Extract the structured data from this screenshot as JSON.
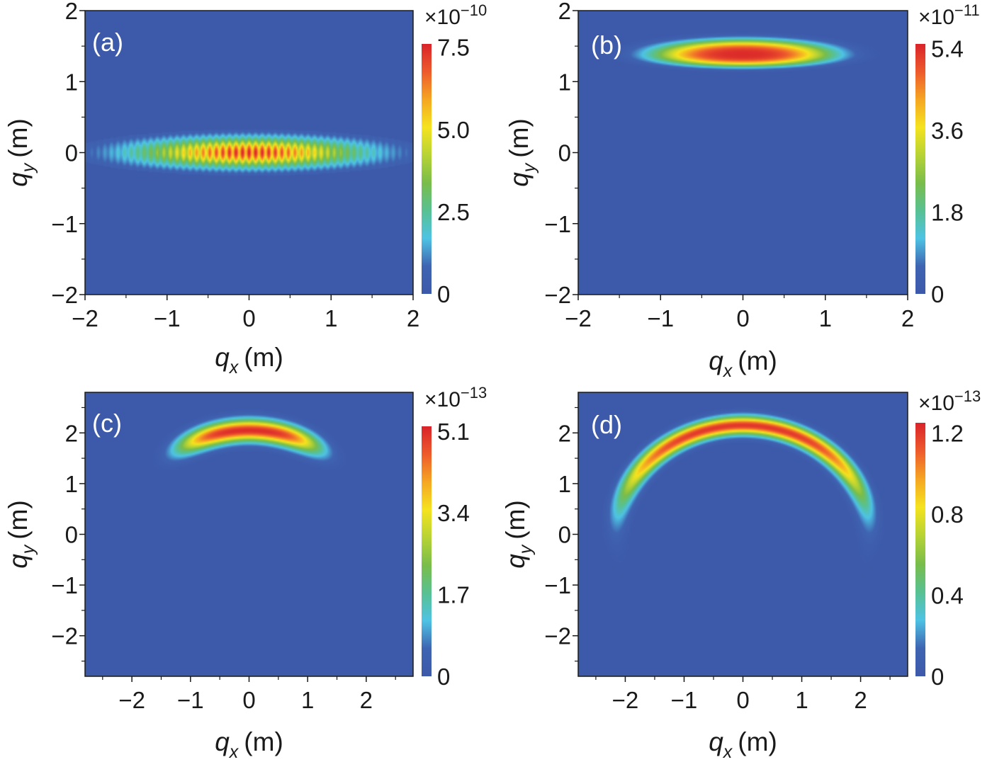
{
  "colors": {
    "background": "#3d59a9",
    "colormap": [
      "#3d59a9",
      "#3f64b2",
      "#4ec3e4",
      "#58c191",
      "#79bd4a",
      "#b7d334",
      "#f5e31e",
      "#f5a623",
      "#ee5a2c",
      "#d9232a"
    ],
    "axis": "#1a1a1a"
  },
  "chart_data": [
    {
      "type": "heatmap",
      "panel_label": "(a)",
      "xlabel": "q",
      "xlabel_sub": "x",
      "ylabel": "q",
      "ylabel_sub": "y",
      "unit": "(m)",
      "xlim": [
        -2,
        2
      ],
      "ylim": [
        -2,
        2
      ],
      "xticks": [
        -2,
        -1,
        0,
        1,
        2
      ],
      "xticks_minor": [
        -1.5,
        -0.5,
        0.5,
        1.5
      ],
      "yticks": [
        -2,
        -1,
        0,
        1,
        2
      ],
      "yticks_minor": [
        -1.5,
        -0.5,
        0.5,
        1.5
      ],
      "colorbar": {
        "multiplier": "×10",
        "exponent": "−10",
        "ticks": [
          0,
          2.5,
          5.0,
          7.5
        ],
        "tick_labels": [
          "0",
          "2.5",
          "5.0",
          "7.5"
        ],
        "max": 7.6
      },
      "feature": {
        "shape": "fringed-ellipse",
        "center": [
          0,
          0
        ],
        "width": 2.75,
        "height": 0.6,
        "peak": 7.5,
        "fringe_period": 0.08
      }
    },
    {
      "type": "heatmap",
      "panel_label": "(b)",
      "xlabel": "q",
      "xlabel_sub": "x",
      "ylabel": "q",
      "ylabel_sub": "y",
      "unit": "(m)",
      "xlim": [
        -2,
        2
      ],
      "ylim": [
        -2,
        2
      ],
      "xticks": [
        -2,
        -1,
        0,
        1,
        2
      ],
      "xticks_minor": [
        -1.5,
        -0.5,
        0.5,
        1.5
      ],
      "yticks": [
        -2,
        -1,
        0,
        1,
        2
      ],
      "yticks_minor": [
        -1.5,
        -0.5,
        0.5,
        1.5
      ],
      "colorbar": {
        "multiplier": "×10",
        "exponent": "−11",
        "ticks": [
          0,
          1.8,
          3.6,
          5.4
        ],
        "tick_labels": [
          "0",
          "1.8",
          "3.6",
          "5.4"
        ],
        "max": 5.5
      },
      "feature": {
        "shape": "half-ellipse",
        "center": [
          0,
          1.38
        ],
        "width": 1.45,
        "height": 0.28,
        "peak": 5.4
      }
    },
    {
      "type": "heatmap",
      "panel_label": "(c)",
      "xlabel": "q",
      "xlabel_sub": "x",
      "ylabel": "q",
      "ylabel_sub": "y",
      "unit": "(m)",
      "xlim": [
        -2.8,
        2.8
      ],
      "ylim": [
        -2.8,
        2.8
      ],
      "xticks": [
        -2,
        -1,
        0,
        1,
        2
      ],
      "xticks_minor": [
        -2.5,
        -1.5,
        -0.5,
        0.5,
        1.5,
        2.5
      ],
      "yticks": [
        -2,
        -1,
        0,
        1,
        2
      ],
      "yticks_minor": [
        -2.5,
        -1.5,
        -0.5,
        0.5,
        1.5,
        2.5
      ],
      "colorbar": {
        "multiplier": "×10",
        "exponent": "−13",
        "ticks": [
          0,
          1.7,
          3.4,
          5.1
        ],
        "tick_labels": [
          "0",
          "1.7",
          "3.4",
          "5.1"
        ],
        "max": 5.2
      },
      "feature": {
        "shape": "arc",
        "center": [
          0,
          0
        ],
        "radius": 2.05,
        "ring_width": 0.45,
        "angular_width": 0.65,
        "peak": 5.1
      }
    },
    {
      "type": "heatmap",
      "panel_label": "(d)",
      "xlabel": "q",
      "xlabel_sub": "x",
      "ylabel": "q",
      "ylabel_sub": "y",
      "unit": "(m)",
      "xlim": [
        -2.8,
        2.8
      ],
      "ylim": [
        -2.8,
        2.8
      ],
      "xticks": [
        -2,
        -1,
        0,
        1,
        2
      ],
      "xticks_minor": [
        -2.5,
        -1.5,
        -0.5,
        0.5,
        1.5,
        2.5
      ],
      "yticks": [
        -2,
        -1,
        0,
        1,
        2
      ],
      "yticks_minor": [
        -2.5,
        -1.5,
        -0.5,
        0.5,
        1.5,
        2.5
      ],
      "colorbar": {
        "multiplier": "×10",
        "exponent": "−13",
        "ticks": [
          0,
          0.4,
          0.8,
          1.2
        ],
        "tick_labels": [
          "0",
          "0.4",
          "0.8",
          "1.2"
        ],
        "max": 1.25
      },
      "feature": {
        "shape": "arc",
        "center": [
          0,
          0
        ],
        "radius": 2.15,
        "ring_width": 0.38,
        "angular_width": 1.35,
        "peak": 1.2
      }
    }
  ]
}
